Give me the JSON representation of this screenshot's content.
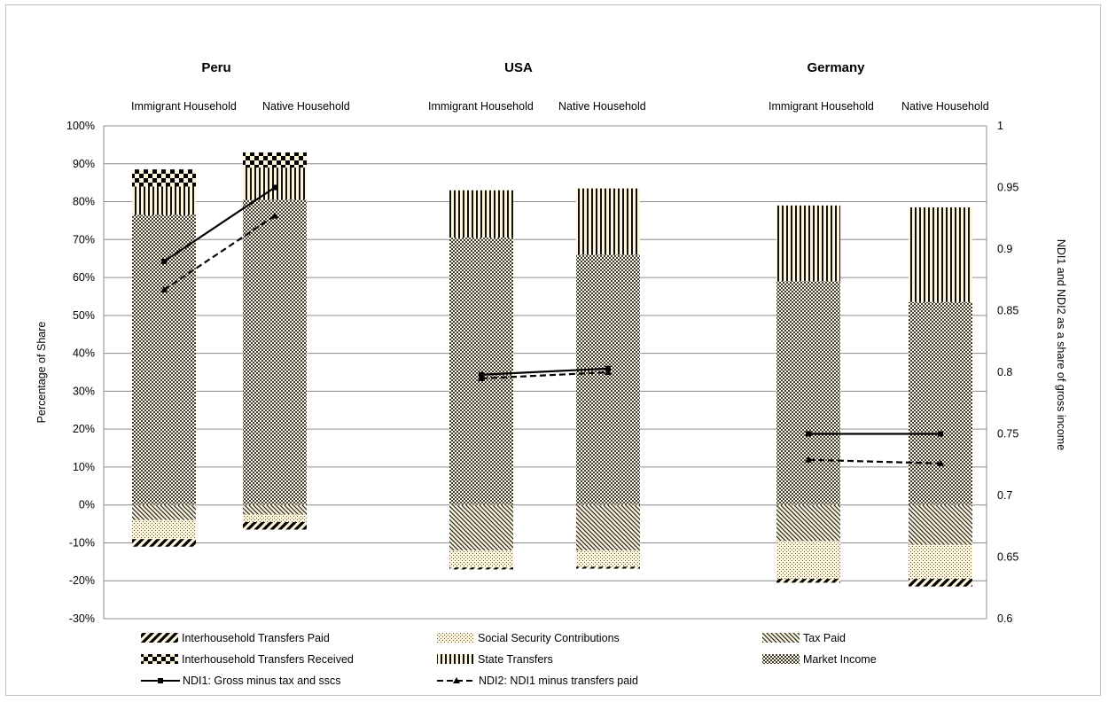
{
  "chart_data": {
    "type": "bar",
    "subtype": "stacked bar with overlaid lines on secondary axis",
    "panels": [
      {
        "title": "Peru",
        "categories": [
          "Immigrant Household",
          "Native Household"
        ]
      },
      {
        "title": "USA",
        "categories": [
          "Immigrant Household",
          "Native Household"
        ]
      },
      {
        "title": "Germany",
        "categories": [
          "Immigrant Household",
          "Native Household"
        ]
      }
    ],
    "ylabel": "Percentage of Share",
    "ylim": [
      -30,
      100
    ],
    "yticks": [
      "-30%",
      "-20%",
      "-10%",
      "0%",
      "10%",
      "20%",
      "30%",
      "40%",
      "50%",
      "60%",
      "70%",
      "80%",
      "90%",
      "100%"
    ],
    "y2label": "NDI1 and NDI2 as a share of gross income",
    "y2lim": [
      0.6,
      1.0
    ],
    "y2ticks": [
      "0.6",
      "0.65",
      "0.7",
      "0.75",
      "0.8",
      "0.85",
      "0.9",
      "0.95",
      "1"
    ],
    "grid": true,
    "legend_position": "bottom",
    "series": [
      {
        "name": "Market Income",
        "pattern": "checker",
        "values": [
          76.5,
          80.5,
          70.5,
          66,
          59,
          53.5
        ]
      },
      {
        "name": "State Transfers",
        "pattern": "vertical",
        "values": [
          7.5,
          8.5,
          12.5,
          17.5,
          20,
          25
        ]
      },
      {
        "name": "Interhousehold Transfers Received",
        "pattern": "largecheck",
        "values": [
          4.5,
          4,
          0,
          0,
          0,
          0
        ]
      },
      {
        "name": "Tax Paid",
        "pattern": "diagonal",
        "values": [
          -4,
          -2.5,
          -12,
          -12,
          -9.5,
          -10.5
        ]
      },
      {
        "name": "Social Security Contributions",
        "pattern": "dots",
        "values": [
          -5,
          -2,
          -4.5,
          -4.3,
          -10,
          -9
        ]
      },
      {
        "name": "Interhousehold Transfers Paid",
        "pattern": "wide",
        "values": [
          -2,
          -2,
          -0.5,
          -0.5,
          -1,
          -2
        ]
      }
    ],
    "lines": [
      {
        "name": "NDI1: Gross minus tax and sscs",
        "axis": "secondary",
        "style": "solid",
        "marker": "square",
        "values": [
          0.89,
          0.95,
          0.798,
          0.803,
          0.75,
          0.75
        ]
      },
      {
        "name": "NDI2: NDI1 minus transfers paid",
        "axis": "secondary",
        "style": "dashed",
        "marker": "triangle",
        "values": [
          0.867,
          0.927,
          0.795,
          0.8,
          0.729,
          0.726
        ]
      }
    ],
    "legend": [
      {
        "name": "Interhousehold Transfers Paid",
        "kind": "pattern",
        "pattern": "wide"
      },
      {
        "name": "Social Security Contributions",
        "kind": "pattern",
        "pattern": "dots"
      },
      {
        "name": "Tax Paid",
        "kind": "pattern",
        "pattern": "diagonal"
      },
      {
        "name": "Interhousehold Transfers Received",
        "kind": "pattern",
        "pattern": "largecheck"
      },
      {
        "name": "State Transfers",
        "kind": "pattern",
        "pattern": "vertical"
      },
      {
        "name": "Market Income",
        "kind": "pattern",
        "pattern": "checker"
      },
      {
        "name": "NDI1: Gross minus tax and sscs",
        "kind": "line",
        "style": "solid",
        "marker": "square"
      },
      {
        "name": "NDI2: NDI1 minus transfers paid",
        "kind": "line",
        "style": "dashed",
        "marker": "triangle"
      }
    ],
    "colors": {
      "bar_background": "#fdf5dc",
      "pattern_ink": "#000000",
      "gridline": "#8c8c8c",
      "border": "#bfbfbf"
    }
  }
}
